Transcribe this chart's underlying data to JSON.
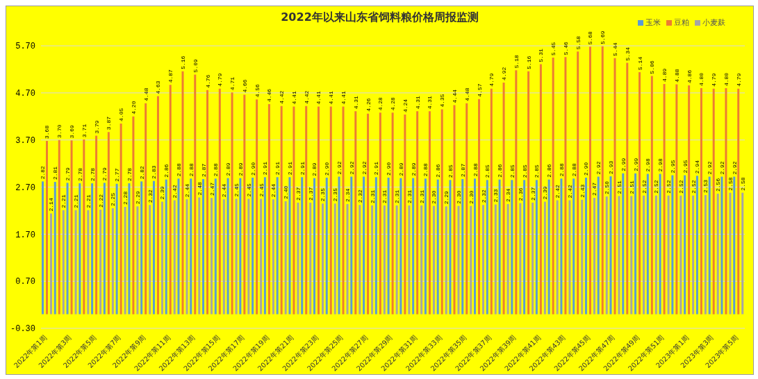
{
  "chart_data": {
    "type": "bar",
    "title": "2022年以来山东省饲料粮价格周报监测",
    "categories": [
      "2022年第1周",
      null,
      "2022年第3周",
      null,
      "2022年第5周",
      null,
      "2022年第7周",
      null,
      "2022年第9周",
      null,
      "2022年第11周",
      null,
      "2022年第13周",
      null,
      "2022年第15周",
      null,
      "2022年第17周",
      null,
      "2022年第19周",
      null,
      "2022年第21周",
      null,
      "2022年第23周",
      null,
      "2022年第25周",
      null,
      "2022年第27周",
      null,
      "2022年第29周",
      null,
      "2022年第31周",
      null,
      "2022年第33周",
      null,
      "2022年第35周",
      null,
      "2022年第37周",
      null,
      "2022年第39周",
      null,
      "2022年第41周",
      null,
      "2022年第43周",
      null,
      "2022年第45周",
      null,
      "2022年第47周",
      null,
      "2022年第49周",
      null,
      "2022年第51周",
      null,
      "2023年第1周",
      null,
      "2023年第3周",
      null,
      "2023年第5周"
    ],
    "series": [
      {
        "name": "玉米",
        "color": "#5b9bd5",
        "values": [
          2.82,
          2.81,
          2.79,
          2.78,
          2.78,
          2.79,
          2.77,
          2.78,
          2.82,
          2.83,
          2.86,
          2.88,
          2.88,
          2.87,
          2.88,
          2.89,
          2.89,
          2.9,
          2.91,
          2.91,
          2.91,
          2.91,
          2.89,
          2.9,
          2.92,
          2.92,
          2.92,
          2.91,
          2.9,
          2.89,
          2.89,
          2.88,
          2.86,
          2.85,
          2.87,
          2.88,
          2.85,
          2.86,
          2.85,
          2.85,
          2.85,
          2.86,
          2.88,
          2.88,
          2.9,
          2.92,
          2.93,
          2.99,
          2.99,
          2.98,
          2.98,
          2.95,
          2.95,
          2.94,
          2.92,
          2.92,
          2.92
        ],
        "value_labels": [
          "2.82",
          "2.81",
          "2.79",
          "2.78",
          "2.78",
          "2.79",
          "2.77",
          "2.78",
          "2.82",
          "2.83",
          "2.86",
          "2.88",
          "2.88",
          "2.87",
          "2.88",
          "2.89",
          "2.89",
          "2.90",
          "2.91",
          "2.91",
          "2.91",
          "2.91",
          "2.89",
          "2.90",
          "2.92",
          "2.92",
          "2.92",
          "2.91",
          "2.90",
          "2.89",
          "2.89",
          "2.88",
          "2.86",
          "2.85",
          "2.87",
          "2.88",
          "2.85",
          "2.86",
          "2.85",
          "2.85",
          "2.85",
          "2.86",
          "2.88",
          "2.88",
          "2.90",
          "2.92",
          "2.93",
          "2.99",
          "2.99",
          "2.98",
          "2.98",
          "2.95",
          "2.95",
          "2.94",
          "2.92",
          "2.92",
          "2.92"
        ]
      },
      {
        "name": "豆粕",
        "color": "#ed7d31",
        "values": [
          3.68,
          3.7,
          3.69,
          3.71,
          3.79,
          3.87,
          4.05,
          4.2,
          4.48,
          4.63,
          4.87,
          5.16,
          5.09,
          4.76,
          4.79,
          4.71,
          4.66,
          4.56,
          4.46,
          4.42,
          4.41,
          4.42,
          4.41,
          4.41,
          4.41,
          4.31,
          4.26,
          4.28,
          4.28,
          4.24,
          4.31,
          4.31,
          4.35,
          4.44,
          4.48,
          4.57,
          4.79,
          4.92,
          5.18,
          5.16,
          5.31,
          5.45,
          5.46,
          5.58,
          5.68,
          5.69,
          5.44,
          5.34,
          5.14,
          5.06,
          4.89,
          4.88,
          4.86,
          4.8,
          4.79,
          4.8,
          4.79
        ],
        "value_labels": [
          "3.68",
          "3.70",
          "3.69",
          "3.71",
          "3.79",
          "3.87",
          "4.05",
          "4.20",
          "4.48",
          "4.63",
          "4.87",
          "5.16",
          "5.09",
          "4.76",
          "4.79",
          "4.71",
          "4.66",
          "4.56",
          "4.46",
          "4.42",
          "4.41",
          "4.42",
          "4.41",
          "4.41",
          "4.41",
          "4.31",
          "4.26",
          "4.28",
          "4.28",
          "4.24",
          "4.31",
          "4.31",
          "4.35",
          "4.44",
          "4.48",
          "4.57",
          "4.79",
          "4.92",
          "5.18",
          "5.16",
          "5.31",
          "5.45",
          "5.46",
          "5.58",
          "5.68",
          "5.69",
          "5.44",
          "5.34",
          "5.14",
          "5.06",
          "4.89",
          "4.88",
          "4.86",
          "4.80",
          "4.79",
          "4.80",
          "4.79"
        ]
      },
      {
        "name": "小麦麸",
        "color": "#a5a5a5",
        "values": [
          2.14,
          2.21,
          2.21,
          2.21,
          2.22,
          2.25,
          2.28,
          2.29,
          2.32,
          2.39,
          2.42,
          2.44,
          2.48,
          2.47,
          2.44,
          2.45,
          2.45,
          2.45,
          2.44,
          2.4,
          2.37,
          2.37,
          2.35,
          2.35,
          2.34,
          2.32,
          2.31,
          2.31,
          2.31,
          2.31,
          2.31,
          2.3,
          2.29,
          2.3,
          2.3,
          2.32,
          2.33,
          2.34,
          2.36,
          2.37,
          2.39,
          2.42,
          2.42,
          2.43,
          2.47,
          2.5,
          2.51,
          2.51,
          2.52,
          2.52,
          2.52,
          2.52,
          2.52,
          2.53,
          2.56,
          2.58,
          2.58
        ],
        "value_labels": [
          "2.14",
          "2.21",
          "2.21",
          "2.21",
          "2.22",
          "2.25",
          "2.28",
          "2.29",
          "2.32",
          "2.39",
          "2.42",
          "2.44",
          "2.48",
          "2.47",
          "2.44",
          "2.45",
          "2.45",
          "2.45",
          "2.44",
          "2.40",
          "2.37",
          "2.37",
          "2.35",
          "2.35",
          "2.34",
          "2.32",
          "2.31",
          "2.31",
          "2.31",
          "2.31",
          "2.31",
          "2.30",
          "2.29",
          "2.30",
          "2.30",
          "2.32",
          "2.33",
          "2.34",
          "2.36",
          "2.37",
          "2.39",
          "2.42",
          "2.42",
          "2.43",
          "2.47",
          "2.50",
          "2.51",
          "2.51",
          "2.52",
          "2.52",
          "2.52",
          "2.52",
          "2.52",
          "2.53",
          "2.56",
          "2.58",
          "2.58"
        ]
      }
    ],
    "ylim": [
      -0.3,
      5.7
    ],
    "yticks": [
      {
        "value": -0.3,
        "label": "-0.30"
      },
      {
        "value": 0.7,
        "label": "0.70"
      },
      {
        "value": 1.7,
        "label": "1.70"
      },
      {
        "value": 2.7,
        "label": "2.70"
      },
      {
        "value": 3.7,
        "label": "3.70"
      },
      {
        "value": 4.7,
        "label": "4.70"
      },
      {
        "value": 5.7,
        "label": "5.70"
      }
    ],
    "grid": "y",
    "legend": "top right"
  }
}
